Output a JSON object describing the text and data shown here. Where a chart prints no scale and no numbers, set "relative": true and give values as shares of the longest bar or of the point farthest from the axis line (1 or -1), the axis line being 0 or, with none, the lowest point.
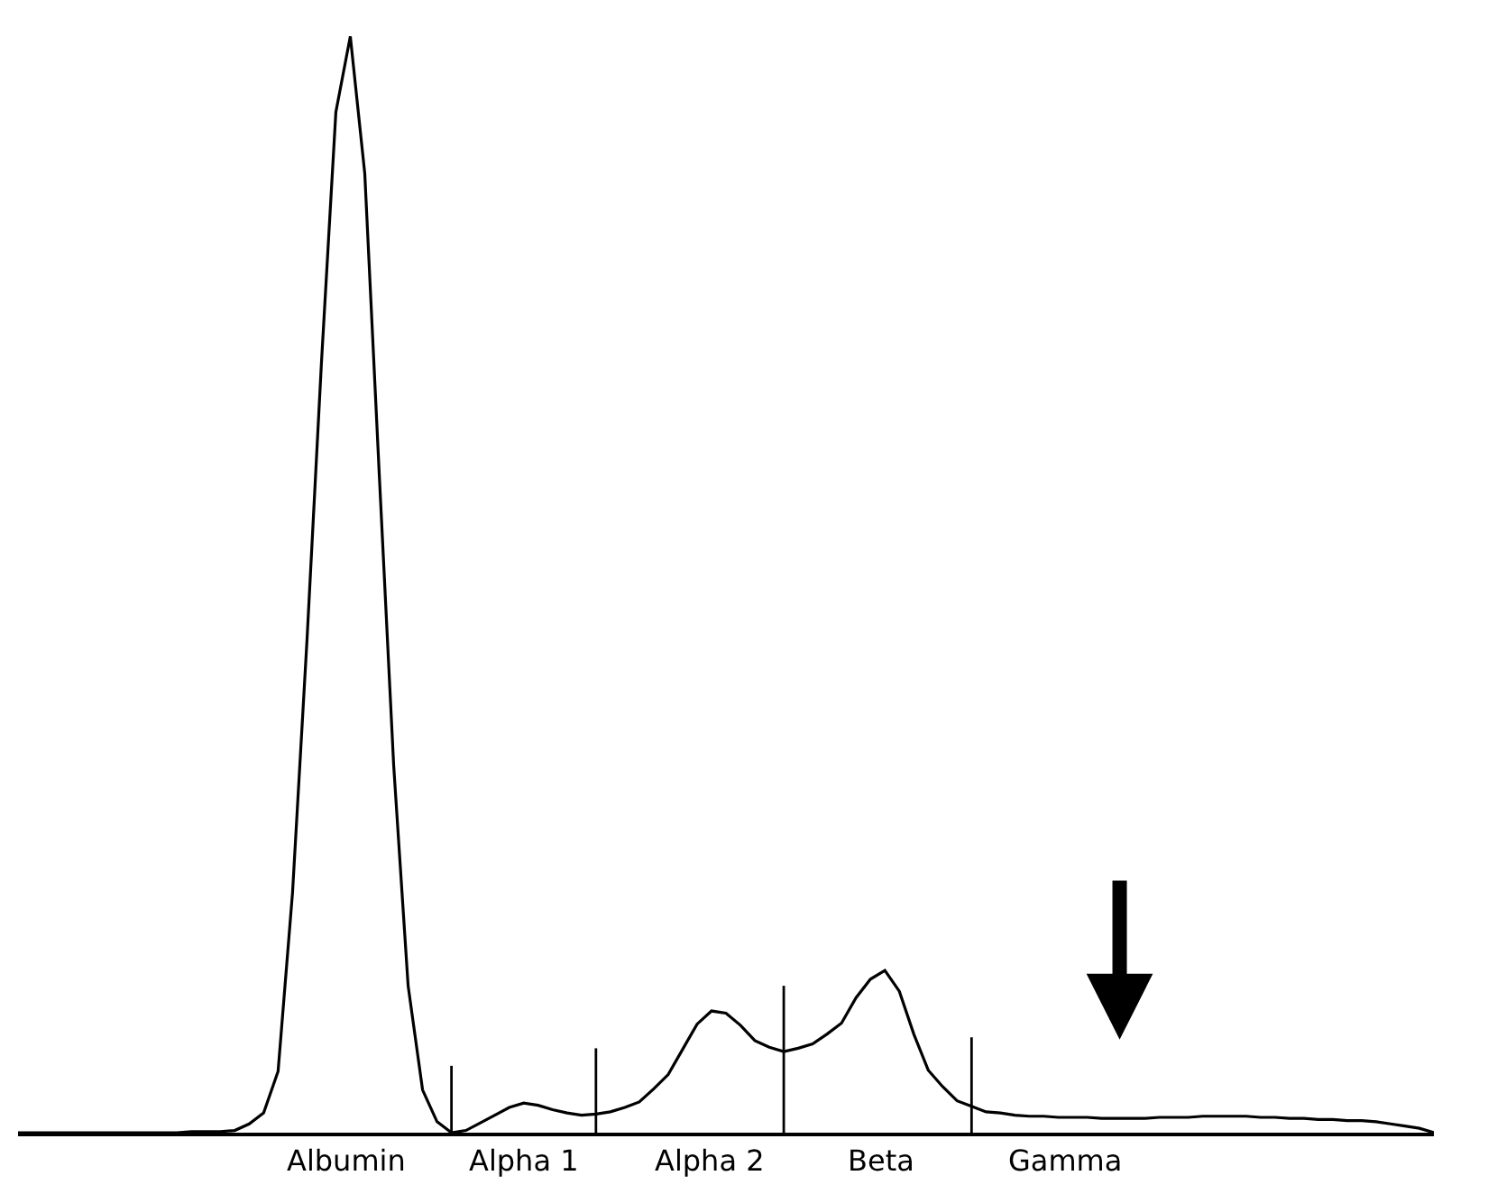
{
  "chart_data": {
    "type": "line",
    "relative": true,
    "marker": "none",
    "line_style": "solid",
    "categories": [
      null,
      null,
      null,
      null,
      null,
      null,
      null,
      null,
      null,
      null,
      null,
      null,
      null,
      null,
      null,
      null,
      null,
      null,
      null,
      null,
      null,
      null,
      null,
      null,
      null,
      null,
      null,
      null,
      null,
      null,
      null,
      null,
      null,
      null,
      null,
      null,
      null,
      null,
      null,
      null,
      null,
      null,
      null,
      null,
      null,
      null,
      null,
      null,
      null,
      null,
      null,
      null,
      null,
      null,
      null,
      null,
      null,
      null,
      null,
      null,
      null,
      null,
      null,
      null,
      null,
      null,
      null,
      null,
      null,
      null,
      null,
      null,
      null,
      null,
      null,
      null,
      null,
      null,
      null,
      null,
      null,
      null,
      null,
      null,
      null,
      null,
      null,
      null,
      null,
      null,
      null,
      null,
      null,
      null,
      null,
      null,
      null,
      null,
      null
    ],
    "series": [
      {
        "color": "#000000",
        "values": [
          0,
          0,
          0,
          0,
          0,
          0,
          0,
          0,
          0,
          0,
          0,
          0,
          0.001,
          0.001,
          0.001,
          0.002,
          0.008,
          0.018,
          0.056,
          0.219,
          0.449,
          0.702,
          0.931,
          1,
          0.875,
          0.601,
          0.335,
          0.134,
          0.039,
          0.01,
          0,
          0.002,
          0.009,
          0.016,
          0.023,
          0.027,
          0.025,
          0.021,
          0.018,
          0.016,
          0.017,
          0.019,
          0.023,
          0.028,
          0.04,
          0.053,
          0.076,
          0.099,
          0.111,
          0.109,
          0.098,
          0.084,
          0.078,
          0.074,
          0.077,
          0.081,
          0.09,
          0.1,
          0.123,
          0.14,
          0.148,
          0.129,
          0.09,
          0.057,
          0.042,
          0.029,
          0.024,
          0.019,
          0.018,
          0.016,
          0.015,
          0.015,
          0.014,
          0.014,
          0.014,
          0.013,
          0.013,
          0.013,
          0.013,
          0.014,
          0.014,
          0.014,
          0.015,
          0.015,
          0.015,
          0.015,
          0.014,
          0.014,
          0.013,
          0.013,
          0.012,
          0.012,
          0.011,
          0.011,
          0.01,
          0.008,
          0.006,
          0.004,
          0
        ]
      }
    ],
    "annotations": [
      "Albumin",
      "Alpha 1",
      "Alpha 2",
      "Beta",
      "Gamma"
    ]
  }
}
